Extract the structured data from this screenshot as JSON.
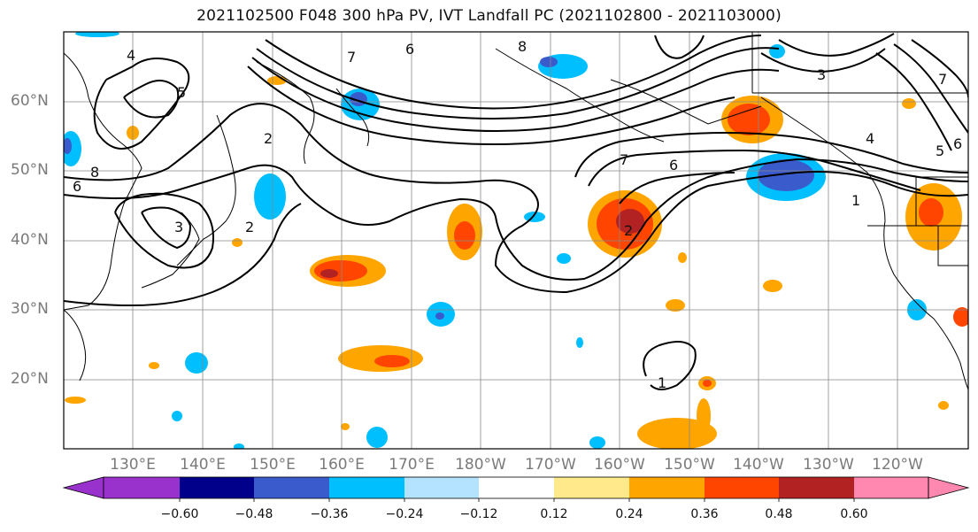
{
  "title": "2021102500 F048 300 hPa PV, IVT Landfall PC (2021102800 - 2021103000)",
  "lat_labels": [
    "60°N",
    "50°N",
    "40°N",
    "30°N",
    "20°N"
  ],
  "lon_labels": [
    "130°E",
    "140°E",
    "150°E",
    "160°E",
    "170°E",
    "180°W",
    "170°W",
    "160°W",
    "150°W",
    "140°W",
    "130°W",
    "120°W"
  ],
  "contour_labels": [
    "8",
    "7",
    "6",
    "4",
    "5",
    "3",
    "2",
    "1"
  ],
  "colorbar": {
    "ticks": [
      "−0.60",
      "−0.48",
      "−0.36",
      "−0.24",
      "−0.12",
      "0.12",
      "0.24",
      "0.36",
      "0.48",
      "0.60"
    ],
    "colors": [
      "#9932cc",
      "#00008b",
      "#3a5bcc",
      "#00bfff",
      "#b3e3ff",
      "#ffffff",
      "#ffe98a",
      "#ffa500",
      "#ff4500",
      "#b22222",
      "#ff88b0"
    ]
  },
  "colors": {
    "neg_strong": "#3a5bcc",
    "neg": "#00bfff",
    "neg_light": "#b3e3ff",
    "pos_light": "#ffe98a",
    "pos": "#ffa500",
    "pos_mid": "#ff4500",
    "pos_strong": "#b22222"
  }
}
